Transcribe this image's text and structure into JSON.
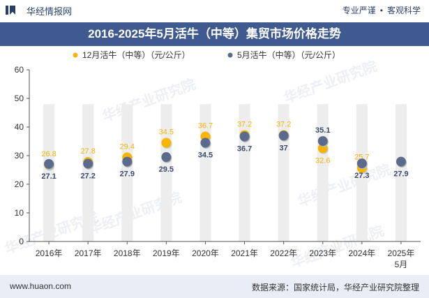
{
  "header": {
    "brand": "华经情报网",
    "tag1": "专业严谨",
    "tag2": "客观科学",
    "logo_icon": "bookmark-logo-icon"
  },
  "title": "2016-2025年5月活牛（中等）集贸市场价格走势",
  "footer": {
    "website": "www.huaon.com",
    "source": "数据来源：国家统计局，华经产业研究院整理"
  },
  "watermark": "华经产业研究院",
  "colors": {
    "series_a": "#f7b500",
    "series_b": "#5b6b8c",
    "title_bg": "#3f5a8f",
    "footer_bg": "#e9eef6",
    "bar_bg": "#ededed"
  },
  "chart_data": {
    "type": "scatter",
    "categories": [
      "2016年",
      "2017年",
      "2018年",
      "2019年",
      "2020年",
      "2021年",
      "2022年",
      "2023年",
      "2024年",
      "2025年\n5月"
    ],
    "ylim": [
      0,
      60
    ],
    "yticks": [
      0,
      10,
      20,
      30,
      40,
      50,
      60
    ],
    "grid": false,
    "legend_position": "top",
    "series": [
      {
        "name": "12月活牛（中等）（元/公斤）",
        "values": [
          26.8,
          27.8,
          29.4,
          34.5,
          36.7,
          37.2,
          37.2,
          32.6,
          25.7,
          null
        ]
      },
      {
        "name": "5月活牛（中等）（元/公斤）",
        "values": [
          27.1,
          27.2,
          27.9,
          29.5,
          34.5,
          36.7,
          37,
          35.1,
          27.3,
          27.9
        ]
      }
    ]
  }
}
